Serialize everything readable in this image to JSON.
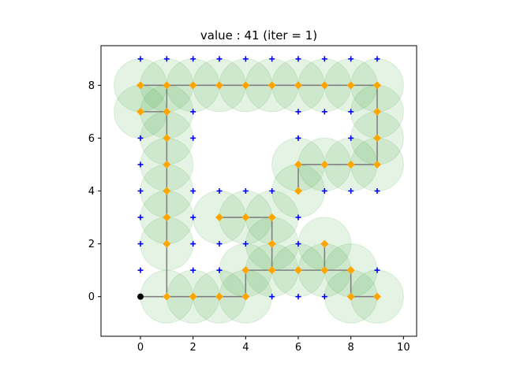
{
  "chart_data": {
    "type": "scatter",
    "title": "value : 41 (iter = 1)",
    "xlabel": "",
    "ylabel": "",
    "xlim": [
      -1.5,
      10.5
    ],
    "ylim": [
      -1.5,
      9.5
    ],
    "xticks": [
      0,
      2,
      4,
      6,
      8,
      10
    ],
    "yticks": [
      0,
      2,
      4,
      6,
      8
    ],
    "xtick_labels": [
      "0",
      "2",
      "4",
      "6",
      "8",
      "10"
    ],
    "ytick_labels": [
      "0",
      "2",
      "4",
      "6",
      "8"
    ],
    "grid": false,
    "colors": {
      "candidate": "#0000ff",
      "selected": "#ffa500",
      "path": "#808080",
      "coverage_fill": "#2ca02c",
      "origin": "#000000"
    },
    "coverage_radius": 1,
    "origin": [
      0,
      0
    ],
    "candidate_points": [
      [
        0,
        9
      ],
      [
        1,
        9
      ],
      [
        2,
        9
      ],
      [
        3,
        9
      ],
      [
        4,
        9
      ],
      [
        5,
        9
      ],
      [
        6,
        9
      ],
      [
        7,
        9
      ],
      [
        8,
        9
      ],
      [
        9,
        9
      ],
      [
        2,
        7
      ],
      [
        6,
        7
      ],
      [
        7,
        7
      ],
      [
        8,
        7
      ],
      [
        0,
        6
      ],
      [
        2,
        6
      ],
      [
        6,
        6
      ],
      [
        8,
        6
      ],
      [
        0,
        5
      ],
      [
        0,
        4
      ],
      [
        2,
        4
      ],
      [
        3,
        4
      ],
      [
        4,
        4
      ],
      [
        5,
        4
      ],
      [
        7,
        4
      ],
      [
        8,
        4
      ],
      [
        9,
        4
      ],
      [
        0,
        3
      ],
      [
        2,
        3
      ],
      [
        6,
        3
      ],
      [
        0,
        2
      ],
      [
        2,
        2
      ],
      [
        3,
        2
      ],
      [
        4,
        2
      ],
      [
        6,
        2
      ],
      [
        0,
        1
      ],
      [
        2,
        1
      ],
      [
        3,
        1
      ],
      [
        9,
        1
      ],
      [
        5,
        0
      ],
      [
        6,
        0
      ],
      [
        7,
        0
      ]
    ],
    "selected_points": [
      [
        0,
        8
      ],
      [
        1,
        8
      ],
      [
        2,
        8
      ],
      [
        3,
        8
      ],
      [
        4,
        8
      ],
      [
        5,
        8
      ],
      [
        6,
        8
      ],
      [
        7,
        8
      ],
      [
        8,
        8
      ],
      [
        9,
        8
      ],
      [
        0,
        7
      ],
      [
        1,
        7
      ],
      [
        9,
        7
      ],
      [
        1,
        6
      ],
      [
        9,
        6
      ],
      [
        1,
        5
      ],
      [
        6,
        5
      ],
      [
        7,
        5
      ],
      [
        8,
        5
      ],
      [
        9,
        5
      ],
      [
        1,
        4
      ],
      [
        6,
        4
      ],
      [
        1,
        3
      ],
      [
        3,
        3
      ],
      [
        4,
        3
      ],
      [
        5,
        3
      ],
      [
        1,
        2
      ],
      [
        5,
        2
      ],
      [
        7,
        2
      ],
      [
        4,
        1
      ],
      [
        5,
        1
      ],
      [
        6,
        1
      ],
      [
        7,
        1
      ],
      [
        8,
        1
      ],
      [
        1,
        0
      ],
      [
        2,
        0
      ],
      [
        3,
        0
      ],
      [
        4,
        0
      ],
      [
        8,
        0
      ],
      [
        9,
        0
      ]
    ],
    "path_segments": [
      [
        [
          0,
          0
        ],
        [
          1,
          0
        ]
      ],
      [
        [
          1,
          0
        ],
        [
          4,
          0
        ]
      ],
      [
        [
          4,
          0
        ],
        [
          4,
          1
        ]
      ],
      [
        [
          4,
          1
        ],
        [
          8,
          1
        ]
      ],
      [
        [
          8,
          1
        ],
        [
          8,
          0
        ]
      ],
      [
        [
          8,
          0
        ],
        [
          9,
          0
        ]
      ],
      [
        [
          1,
          0
        ],
        [
          1,
          8
        ]
      ],
      [
        [
          0,
          8
        ],
        [
          9,
          8
        ]
      ],
      [
        [
          0,
          7
        ],
        [
          1,
          7
        ]
      ],
      [
        [
          9,
          8
        ],
        [
          9,
          5
        ]
      ],
      [
        [
          6,
          5
        ],
        [
          9,
          5
        ]
      ],
      [
        [
          6,
          5
        ],
        [
          6,
          4
        ]
      ],
      [
        [
          3,
          3
        ],
        [
          5,
          3
        ]
      ],
      [
        [
          5,
          3
        ],
        [
          5,
          1
        ]
      ],
      [
        [
          7,
          2
        ],
        [
          7,
          1
        ]
      ]
    ]
  }
}
